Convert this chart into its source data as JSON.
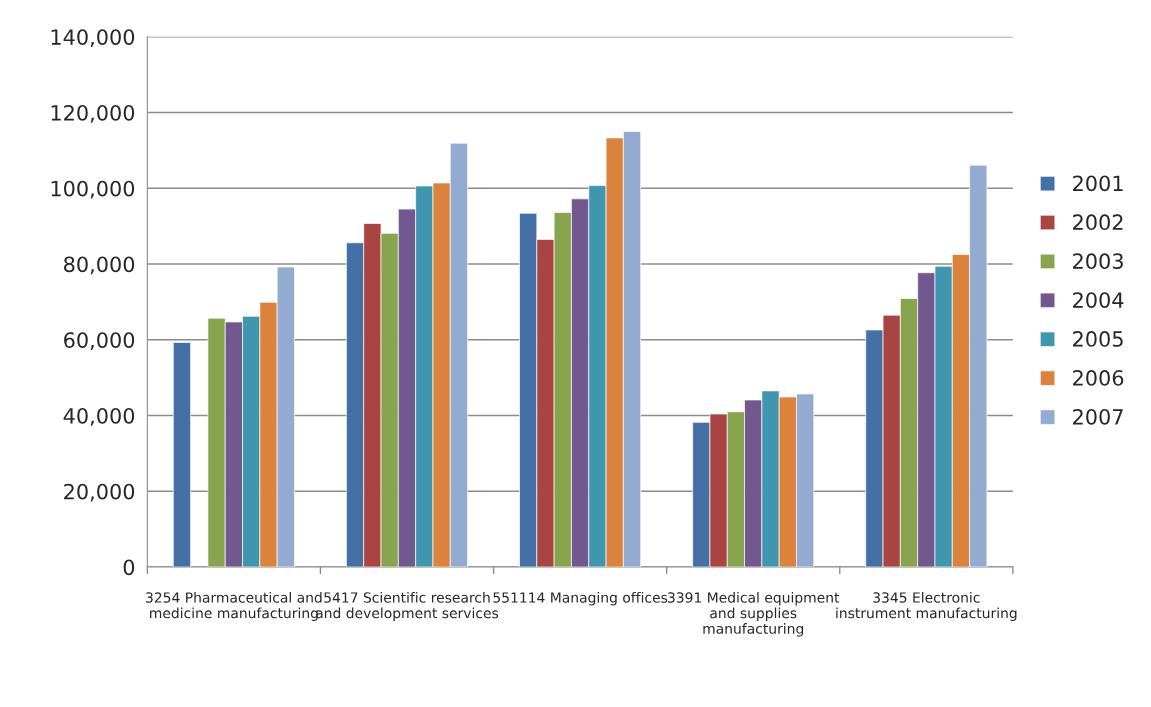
{
  "chart_data": {
    "type": "bar",
    "categories": [
      "3254 Pharmaceutical and medicine manufacturing",
      "5417 Scientific research and development services",
      "551114 Managing offices",
      "3391 Medical equipment and supplies manufacturing",
      "3345 Electronic instrument manufacturing"
    ],
    "series": [
      {
        "name": "2001",
        "color": "#4470a6",
        "values": [
          59300,
          85600,
          93400,
          38200,
          62600
        ]
      },
      {
        "name": "2002",
        "color": "#a84543",
        "values": [
          null,
          90700,
          86500,
          40400,
          66500
        ]
      },
      {
        "name": "2003",
        "color": "#89a44e",
        "values": [
          65700,
          88100,
          93600,
          41000,
          70900
        ]
      },
      {
        "name": "2004",
        "color": "#71588f",
        "values": [
          64700,
          94500,
          97200,
          44100,
          77700
        ]
      },
      {
        "name": "2005",
        "color": "#4096ae",
        "values": [
          66200,
          100600,
          100700,
          46500,
          79400
        ]
      },
      {
        "name": "2006",
        "color": "#db823d",
        "values": [
          69900,
          101400,
          113300,
          44900,
          82500
        ]
      },
      {
        "name": "2007",
        "color": "#93abd0",
        "values": [
          79200,
          111900,
          115000,
          45700,
          106100
        ]
      }
    ],
    "ylim": [
      0,
      140000
    ],
    "yticks": [
      0,
      {
        "value": 20000,
        "label": "20,000"
      },
      {
        "value": 40000,
        "label": "40,000"
      },
      {
        "value": 60000,
        "label": "60,000"
      },
      {
        "value": 80000,
        "label": "80,000"
      },
      {
        "value": 100000,
        "label": "100,000"
      },
      {
        "value": 120000,
        "label": "120,000"
      },
      {
        "value": 140000,
        "label": "140,000"
      }
    ],
    "grid": "y",
    "legend": "right"
  }
}
